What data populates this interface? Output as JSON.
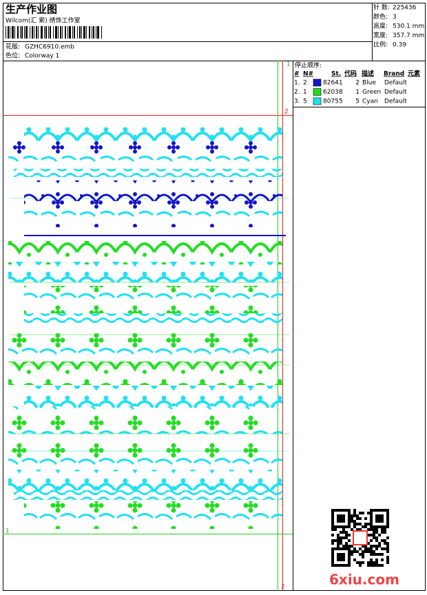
{
  "header": {
    "title": "生产作业图",
    "company": "Wilcom(汇 索) 绣饰工作室",
    "design_label": "花版:",
    "design": "GZHC6910.emb",
    "colorway_label": "色位:",
    "colorway": "Colorway 1"
  },
  "stats": [
    {
      "label": "针 数:",
      "value": "225436"
    },
    {
      "label": "颜色:",
      "value": "3"
    },
    {
      "label": "高度:",
      "value": "530.1 mm"
    },
    {
      "label": "宽度:",
      "value": "357.7 mm"
    },
    {
      "label": "比例:",
      "value": "0.39"
    }
  ],
  "stop_sequence": {
    "title": "停止顺序:",
    "columns": [
      "#",
      "N#",
      "St.",
      "代码",
      "描述",
      "Brand",
      "元素"
    ],
    "rows": [
      {
        "color": "#1414c8",
        "cells": [
          "1.",
          "2",
          "82641",
          "2",
          "Blue",
          "Default"
        ]
      },
      {
        "color": "#22dd22",
        "cells": [
          "2.",
          "1",
          "62038",
          "1",
          "Green",
          "Default"
        ]
      },
      {
        "color": "#22e0f0",
        "cells": [
          "3.",
          "5",
          "80755",
          "5",
          "Cyan",
          "Default"
        ]
      }
    ]
  },
  "markers": [
    "1",
    "2",
    "1",
    "2"
  ],
  "watermark": "6xiu.com"
}
